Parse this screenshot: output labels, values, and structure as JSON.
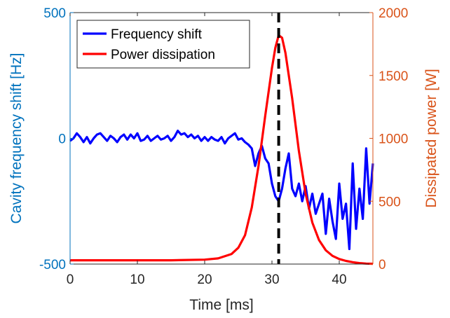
{
  "chart_data": {
    "type": "line",
    "xlabel": "Time [ms]",
    "ylabel_left": "Cavity frequency shift [Hz]",
    "ylabel_right": "Dissipated power [W]",
    "xlim": [
      0,
      45
    ],
    "ylim_left": [
      -500,
      500
    ],
    "ylim_right": [
      0,
      2000
    ],
    "x_ticks": [
      0,
      10,
      20,
      30,
      40
    ],
    "y_ticks_left": [
      -500,
      0,
      500
    ],
    "y_ticks_right": [
      0,
      500,
      1000,
      1500,
      2000
    ],
    "grid": false,
    "legend_position": "top-left",
    "colors": {
      "left_axis": "#0072BD",
      "right_axis": "#D95319",
      "frequency": "#0000FF",
      "power": "#FF0000",
      "marker": "#000000"
    },
    "series": [
      {
        "name": "Frequency shift",
        "axis": "left",
        "points": [
          [
            0,
            -10
          ],
          [
            0.5,
            0
          ],
          [
            1,
            20
          ],
          [
            1.5,
            5
          ],
          [
            2,
            -15
          ],
          [
            2.5,
            5
          ],
          [
            3,
            -20
          ],
          [
            3.5,
            0
          ],
          [
            4,
            15
          ],
          [
            4.5,
            20
          ],
          [
            5,
            5
          ],
          [
            5.5,
            -10
          ],
          [
            6,
            10
          ],
          [
            6.5,
            0
          ],
          [
            7,
            -15
          ],
          [
            7.5,
            5
          ],
          [
            8,
            15
          ],
          [
            8.5,
            -5
          ],
          [
            9,
            15
          ],
          [
            9.5,
            0
          ],
          [
            10,
            20
          ],
          [
            10.5,
            -10
          ],
          [
            11,
            -5
          ],
          [
            11.5,
            10
          ],
          [
            12,
            -10
          ],
          [
            12.5,
            0
          ],
          [
            13,
            10
          ],
          [
            13.5,
            -5
          ],
          [
            14,
            0
          ],
          [
            14.5,
            10
          ],
          [
            15,
            -10
          ],
          [
            15.5,
            5
          ],
          [
            16,
            30
          ],
          [
            16.5,
            15
          ],
          [
            17,
            20
          ],
          [
            17.5,
            5
          ],
          [
            18,
            15
          ],
          [
            18.5,
            0
          ],
          [
            19,
            10
          ],
          [
            19.5,
            -10
          ],
          [
            20,
            5
          ],
          [
            20.5,
            -10
          ],
          [
            21,
            5
          ],
          [
            21.5,
            -5
          ],
          [
            22,
            -10
          ],
          [
            22.5,
            5
          ],
          [
            23,
            -20
          ],
          [
            23.5,
            0
          ],
          [
            24,
            10
          ],
          [
            24.5,
            20
          ],
          [
            25,
            -5
          ],
          [
            25.5,
            0
          ],
          [
            26,
            -15
          ],
          [
            26.5,
            -25
          ],
          [
            27,
            -40
          ],
          [
            27.5,
            -110
          ],
          [
            28,
            -60
          ],
          [
            28.5,
            -30
          ],
          [
            29,
            -80
          ],
          [
            29.5,
            -100
          ],
          [
            30,
            -180
          ],
          [
            30.5,
            -230
          ],
          [
            31,
            -250
          ],
          [
            31.5,
            -200
          ],
          [
            32,
            -120
          ],
          [
            32.5,
            -60
          ],
          [
            33,
            -200
          ],
          [
            33.5,
            -230
          ],
          [
            34,
            -180
          ],
          [
            34.5,
            -250
          ],
          [
            35,
            -190
          ],
          [
            35.5,
            -280
          ],
          [
            36,
            -220
          ],
          [
            36.5,
            -300
          ],
          [
            37,
            -260
          ],
          [
            37.5,
            -220
          ],
          [
            38,
            -380
          ],
          [
            38.5,
            -240
          ],
          [
            39,
            -330
          ],
          [
            39.5,
            -400
          ],
          [
            40,
            -180
          ],
          [
            40.5,
            -320
          ],
          [
            41,
            -260
          ],
          [
            41.5,
            -440
          ],
          [
            42,
            -100
          ],
          [
            42.5,
            -360
          ],
          [
            43,
            -200
          ],
          [
            43.5,
            -320
          ],
          [
            44,
            -40
          ],
          [
            44.5,
            -260
          ],
          [
            45,
            -100
          ]
        ]
      },
      {
        "name": "Power dissipation",
        "axis": "right",
        "points": [
          [
            0,
            30
          ],
          [
            5,
            30
          ],
          [
            10,
            30
          ],
          [
            15,
            30
          ],
          [
            20,
            35
          ],
          [
            22,
            45
          ],
          [
            24,
            80
          ],
          [
            25,
            130
          ],
          [
            26,
            230
          ],
          [
            27,
            450
          ],
          [
            28,
            780
          ],
          [
            29,
            1180
          ],
          [
            30,
            1560
          ],
          [
            30.5,
            1720
          ],
          [
            31,
            1820
          ],
          [
            31.5,
            1800
          ],
          [
            32,
            1680
          ],
          [
            33,
            1320
          ],
          [
            34,
            900
          ],
          [
            35,
            560
          ],
          [
            36,
            330
          ],
          [
            37,
            190
          ],
          [
            38,
            110
          ],
          [
            39,
            65
          ],
          [
            40,
            40
          ],
          [
            41,
            25
          ],
          [
            42,
            15
          ],
          [
            43,
            8
          ],
          [
            44,
            4
          ],
          [
            45,
            2
          ]
        ]
      }
    ],
    "vline_x": 31
  }
}
